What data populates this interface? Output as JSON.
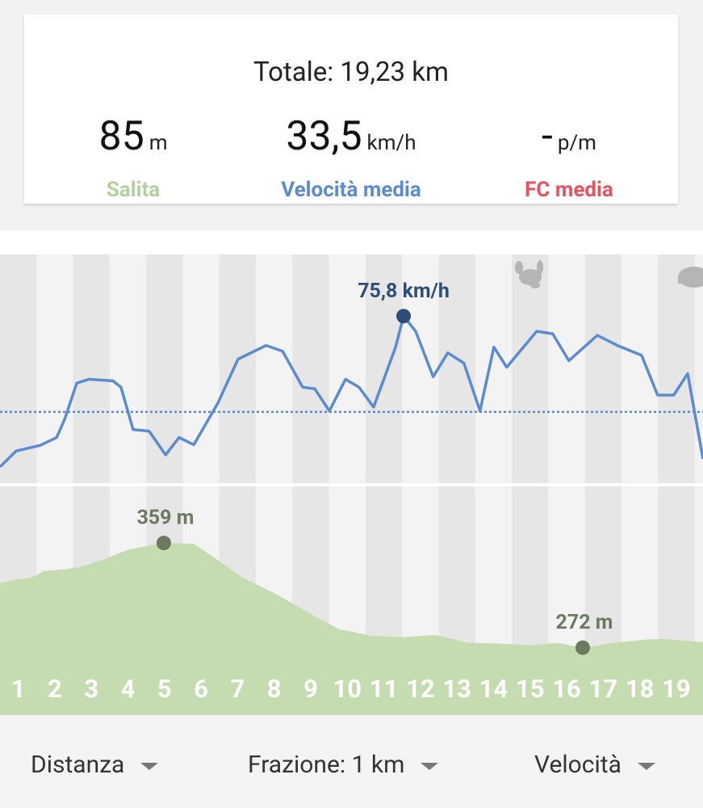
{
  "summary": {
    "title": "Totale: 19,23 km",
    "stats": [
      {
        "value": "85",
        "unit": "m",
        "label": "Salita",
        "color": "#b3d19c"
      },
      {
        "value": "33,5",
        "unit": "km/h",
        "label": "Velocità media",
        "color": "#5b8ccf"
      },
      {
        "value": "-",
        "unit": "p/m",
        "label": "FC media",
        "color": "#e8515f"
      }
    ]
  },
  "chart_data": [
    {
      "type": "line",
      "color": "#5b8ccf",
      "xlim": [
        0,
        19.23
      ],
      "ylim": [
        2,
        103
      ],
      "average": 33.5,
      "x": [
        0,
        0.44,
        1.1,
        1.55,
        1.77,
        2.1,
        2.43,
        3.09,
        3.31,
        3.64,
        4.08,
        4.53,
        4.9,
        5.3,
        5.96,
        6.51,
        7.28,
        7.73,
        8.28,
        8.61,
        9.01,
        9.45,
        9.82,
        10.22,
        10.82,
        11.04,
        11.37,
        11.85,
        12.25,
        12.69,
        13.13,
        13.51,
        13.86,
        14.68,
        15.12,
        15.56,
        16.34,
        16.89,
        17.55,
        17.99,
        18.43,
        18.81,
        19.23
      ],
      "values": [
        9.2,
        16.2,
        18.7,
        22.2,
        30.3,
        46.2,
        47.9,
        47.2,
        44.4,
        25.7,
        25.0,
        14.5,
        22.2,
        19.0,
        37.4,
        56.8,
        62.8,
        60.3,
        44.4,
        43.7,
        33.9,
        47.9,
        44.4,
        35.6,
        62.1,
        75.8,
        69.1,
        49.0,
        59.6,
        55.0,
        33.9,
        62.1,
        53.2,
        69.1,
        68.0,
        56.1,
        67.3,
        62.8,
        58.5,
        40.9,
        40.9,
        50.4,
        12.7
      ],
      "value_labels": [
        null,
        null,
        null,
        null,
        null,
        null,
        null,
        null,
        null,
        null,
        null,
        null,
        null,
        null,
        null,
        null,
        null,
        null,
        null,
        null,
        null,
        null,
        null,
        null,
        null,
        "75,8 km/h",
        null,
        null,
        null,
        null,
        null,
        null,
        null,
        null,
        null,
        null,
        null,
        null,
        null,
        null,
        null,
        null,
        null
      ]
    },
    {
      "type": "area",
      "color": "#c5dcb0",
      "xlim": [
        0,
        19.23
      ],
      "ylim": [
        216,
        406
      ],
      "x": [
        0,
        0.44,
        0.88,
        1.21,
        1.77,
        2.21,
        2.87,
        3.53,
        4.48,
        5.3,
        5.85,
        6.62,
        7.51,
        8.39,
        9.27,
        10.15,
        11.04,
        11.92,
        12.8,
        13.69,
        14.57,
        15.23,
        15.94,
        16.78,
        17.66,
        18.1,
        19.23
      ],
      "values": [
        325.8,
        328.5,
        330.5,
        335.8,
        337.2,
        339.1,
        345.7,
        353.7,
        359,
        358.3,
        347,
        330.5,
        317.2,
        301.9,
        287.3,
        282,
        280.7,
        282.7,
        276,
        275.4,
        274,
        276,
        272,
        276,
        278.7,
        279.4,
        276.7
      ],
      "value_labels": [
        null,
        null,
        null,
        null,
        null,
        null,
        null,
        null,
        "359 m",
        null,
        null,
        null,
        null,
        null,
        null,
        null,
        null,
        null,
        null,
        null,
        null,
        null,
        "272 m",
        null,
        null,
        null,
        null
      ],
      "segments": [
        1,
        2,
        3,
        4,
        5,
        6,
        7,
        8,
        9,
        10,
        11,
        12,
        13,
        14,
        15,
        16,
        17,
        18,
        19
      ]
    }
  ],
  "controls": [
    "Distanza",
    "Frazione: 1 km",
    "Velocità"
  ]
}
